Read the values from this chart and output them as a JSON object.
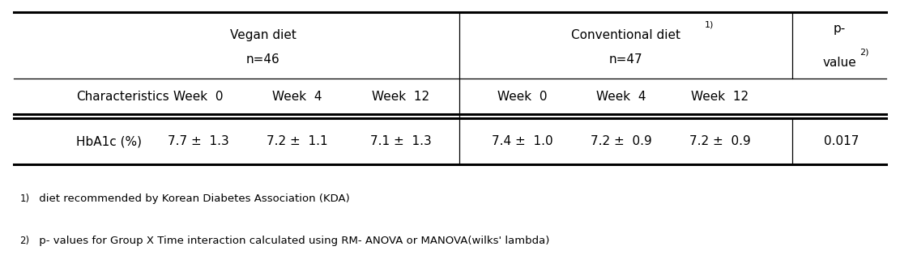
{
  "vegan_header": "Vegan diet",
  "vegan_n": "n=46",
  "conv_header": "Conventional diet",
  "conv_sup": "1)",
  "conv_n": "n=47",
  "pval_line1": "p-",
  "pval_line2": "value",
  "pval_sup": "2)",
  "col_char": "Characteristics",
  "col_week0": "Week  0",
  "col_week4": "Week  4",
  "col_week12": "Week  12",
  "row_label": "HbA1c (%)",
  "vegan_w0": "7.7 ±  1.3",
  "vegan_w4": "7.2 ±  1.1",
  "vegan_w12": "7.1 ±  1.3",
  "conv_w0": "7.4 ±  1.0",
  "conv_w4": "7.2 ±  0.9",
  "conv_w12": "7.2 ±  0.9",
  "pval": "0.017",
  "fn1_sup": "1)",
  "fn1_text": " diet recommended by Korean Diabetes Association (KDA)",
  "fn2_sup": "2)",
  "fn2_text": " p- values for Group X Time interaction calculated using RM- ANOVA or MANOVA(wilks' lambda)",
  "bg_color": "#ffffff",
  "text_color": "#000000",
  "font_size": 11,
  "fn_font_size": 9.5
}
